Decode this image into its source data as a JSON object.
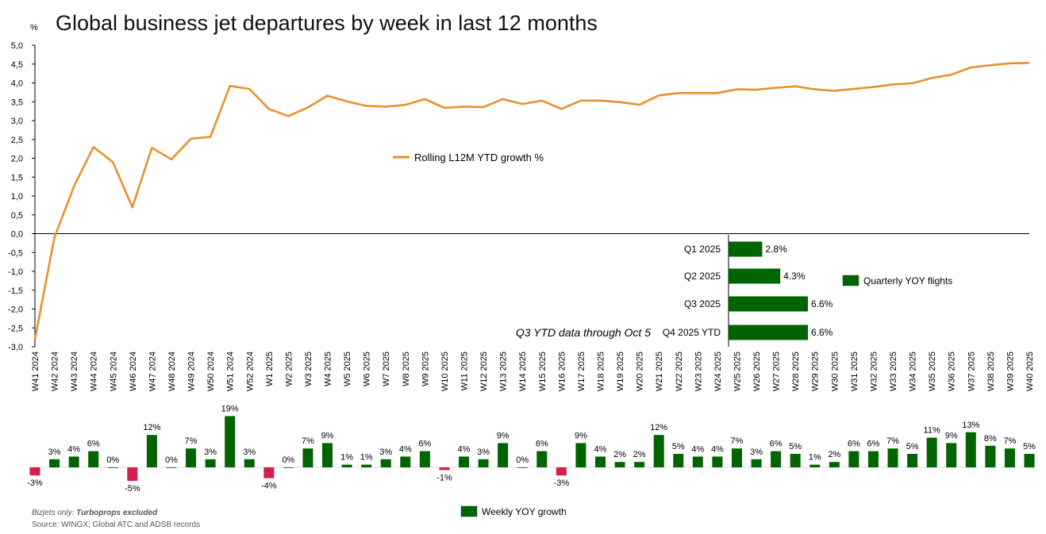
{
  "title": "Global business jet departures by week in last 12 months",
  "y_unit": "%",
  "footnote": {
    "prefix": "Bizjets only: ",
    "emphasis": "Turboprops excluded"
  },
  "source": "Source: WINGX; Global ATC and ADSB records",
  "colors": {
    "line": "#E8912D",
    "bar_positive": "#006400",
    "bar_negative": "#D21F4B",
    "axis": "#000000"
  },
  "chart_data": [
    {
      "type": "line",
      "x": [
        "W41 2024",
        "W42 2024",
        "W43 2024",
        "W44 2024",
        "W45 2024",
        "W46 2024",
        "W47 2024",
        "W48 2024",
        "W49 2024",
        "W50 2024",
        "W51 2024",
        "W52 2024",
        "W1 2025",
        "W2 2025",
        "W3 2025",
        "W4 2025",
        "W5 2025",
        "W6 2025",
        "W7 2025",
        "W8 2025",
        "W9 2025",
        "W10 2025",
        "W11 2025",
        "W12 2025",
        "W13 2025",
        "W14 2025",
        "W15 2025",
        "W16 2025",
        "W17 2025",
        "W18 2025",
        "W19 2025",
        "W20 2025",
        "W21 2025",
        "W22 2025",
        "W23 2025",
        "W24 2025",
        "W25 2025",
        "W26 2025",
        "W27 2025",
        "W28 2025",
        "W29 2025",
        "W30 2025",
        "W31 2025",
        "W32 2025",
        "W33 2025",
        "W34 2025",
        "W35 2025",
        "W36 2025",
        "W37 2025",
        "W38 2025",
        "W39 2025",
        "W40 2025"
      ],
      "series": [
        {
          "name": "Rolling L12M YTD growth %",
          "values": [
            -2.8,
            -0.1,
            1.25,
            2.3,
            1.9,
            0.7,
            2.28,
            1.97,
            2.52,
            2.57,
            3.92,
            3.84,
            3.31,
            3.12,
            3.35,
            3.66,
            3.51,
            3.39,
            3.37,
            3.42,
            3.57,
            3.34,
            3.37,
            3.36,
            3.57,
            3.44,
            3.53,
            3.31,
            3.53,
            3.53,
            3.49,
            3.42,
            3.67,
            3.73,
            3.73,
            3.73,
            3.83,
            3.82,
            3.87,
            3.91,
            3.83,
            3.79,
            3.84,
            3.89,
            3.96,
            3.99,
            4.13,
            4.22,
            4.41,
            4.47,
            4.52,
            4.53
          ]
        }
      ],
      "ylim": [
        -3.0,
        5.0
      ],
      "yticks": [
        "5,0",
        "4,5",
        "4,0",
        "3,5",
        "3,0",
        "2,5",
        "2,0",
        "1,5",
        "1,0",
        "0,5",
        "0,0",
        "-0,5",
        "-1,0",
        "-1,5",
        "-2,0",
        "-2,5",
        "-3,0"
      ],
      "legend_position": "center"
    },
    {
      "type": "bar",
      "orientation": "horizontal",
      "categories": [
        "Q1 2025",
        "Q2 2025",
        "Q3 2025",
        "Q4 2025 YTD"
      ],
      "values": [
        2.8,
        4.3,
        6.6,
        6.6
      ],
      "value_labels": [
        "2.8%",
        "4.3%",
        "6.6%",
        "6.6%"
      ],
      "series_name": "Quarterly YOY flights",
      "annotation": "Q3 YTD data through Oct 5"
    },
    {
      "type": "bar",
      "series_name": "Weekly YOY growth",
      "values": [
        -3,
        3,
        4,
        6,
        0,
        -5,
        12,
        0,
        7,
        3,
        19,
        3,
        -4,
        0,
        7,
        9,
        1,
        1,
        3,
        4,
        6,
        -1,
        4,
        3,
        9,
        0,
        6,
        -3,
        9,
        4,
        2,
        2,
        12,
        5,
        4,
        4,
        7,
        3,
        6,
        5,
        1,
        2,
        6,
        6,
        7,
        5,
        11,
        9,
        13,
        8,
        7,
        5
      ],
      "value_labels": [
        "-3%",
        "3%",
        "4%",
        "6%",
        "0%",
        "-5%",
        "12%",
        "0%",
        "7%",
        "3%",
        "19%",
        "3%",
        "-4%",
        "0%",
        "7%",
        "9%",
        "1%",
        "1%",
        "3%",
        "4%",
        "6%",
        "-1%",
        "4%",
        "3%",
        "9%",
        "0%",
        "6%",
        "-3%",
        "9%",
        "4%",
        "2%",
        "2%",
        "12%",
        "5%",
        "4%",
        "4%",
        "7%",
        "3%",
        "6%",
        "5%",
        "1%",
        "2%",
        "6%",
        "6%",
        "7%",
        "5%",
        "11%",
        "9%",
        "13%",
        "8%",
        "7%",
        "5%"
      ]
    }
  ]
}
